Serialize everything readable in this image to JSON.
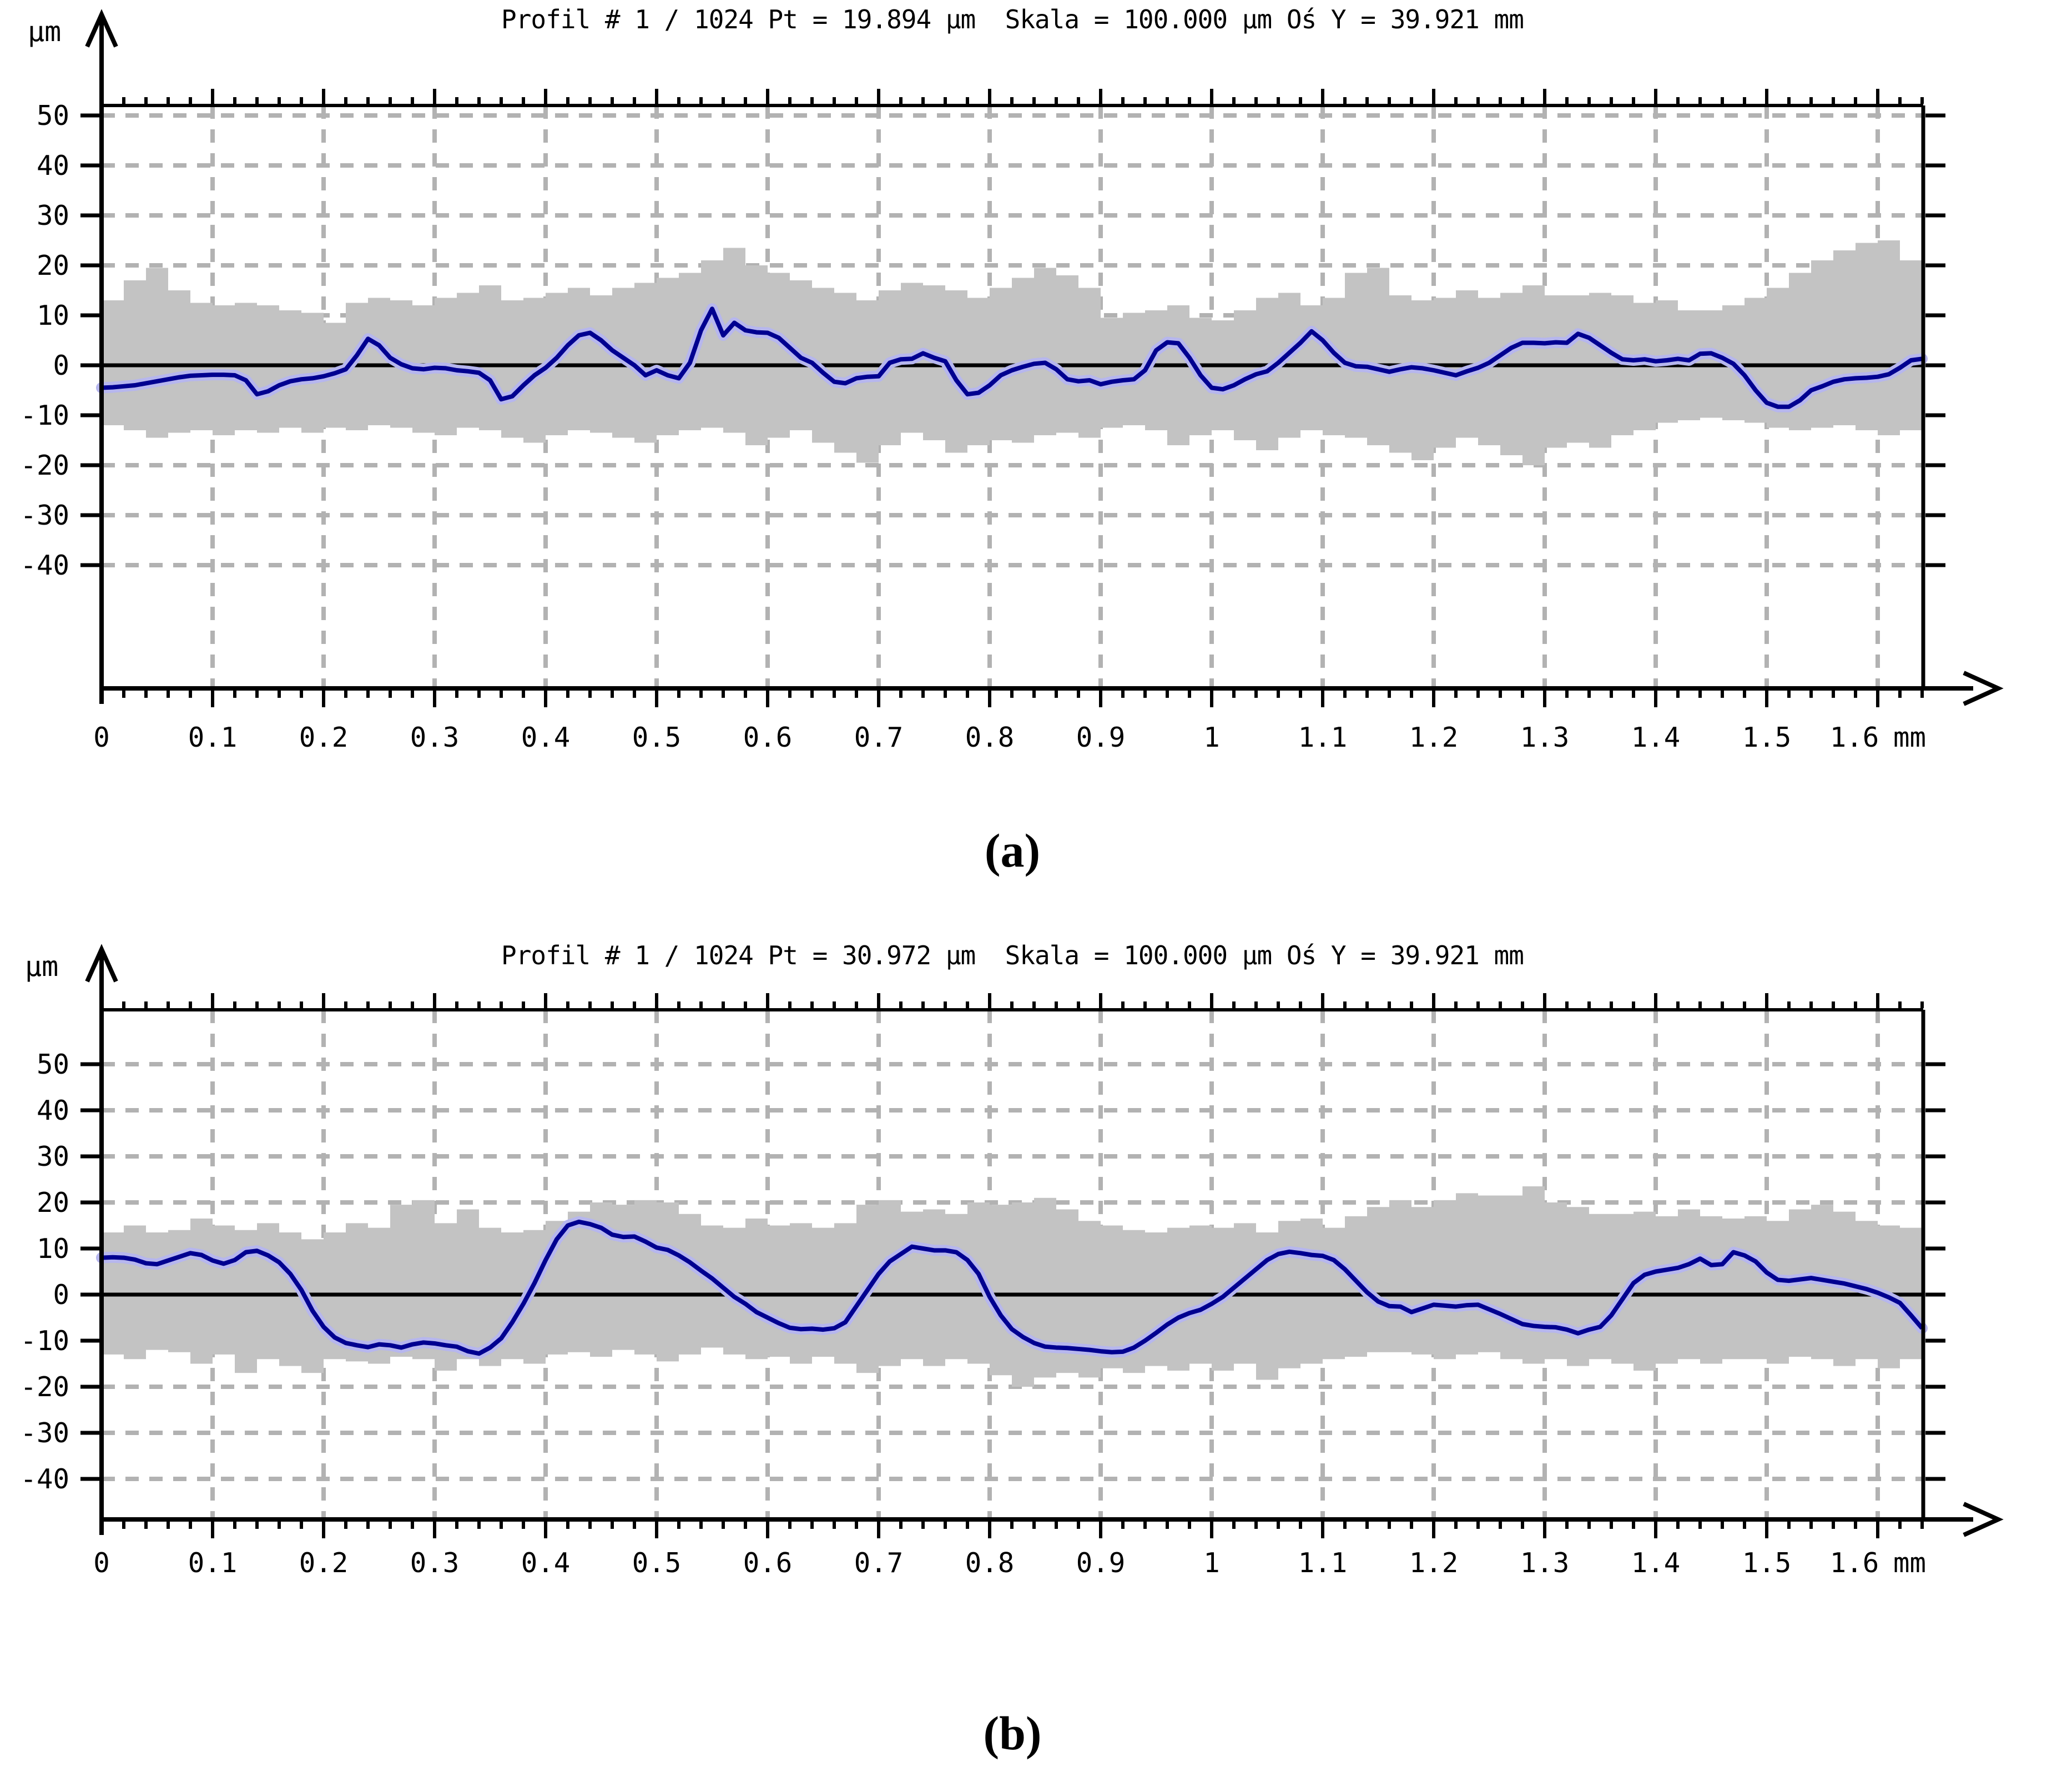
{
  "page": {
    "background": "#ffffff"
  },
  "charts": [
    {
      "id": "a",
      "title": "Profil # 1 / 1024 Pt = 19.894 µm  Skala = 100.000 µm Oś Y = 39.921 mm",
      "y_unit_label": "µm",
      "x_unit_label": "mm",
      "caption": "(a)",
      "colors": {
        "mean": "#000090",
        "halo": "#b6b6ee",
        "band": "#c3c3c3",
        "grid": "#b2b2b2",
        "axis": "#000000"
      },
      "axes": {
        "y_ticks": [
          50,
          40,
          30,
          20,
          10,
          0,
          -10,
          -20,
          -30,
          -40
        ],
        "x_ticks": [
          0,
          0.1,
          0.2,
          0.3,
          0.4,
          0.5,
          0.6,
          0.7,
          0.8,
          0.9,
          1,
          1.1,
          1.2,
          1.3,
          1.4,
          1.5,
          1.6
        ],
        "x_tick_labels": [
          "0",
          "0.1",
          "0.2",
          "0.3",
          "0.4",
          "0.5",
          "0.6",
          "0.7",
          "0.8",
          "0.9",
          "1",
          "1.1",
          "1.2",
          "1.3",
          "1.4",
          "1.5",
          "1.6"
        ],
        "x_minor_step_mm": 0.02,
        "grid": true
      },
      "chart_data": {
        "type": "area+line",
        "title": "Profil # 1 / 1024 Pt = 19.894 µm  Skala = 100.000 µm Oś Y = 39.921 mm",
        "xlabel": "mm",
        "ylabel": "µm",
        "x_range": [
          0,
          1.64
        ],
        "ylim": [
          -40,
          50
        ],
        "series": [
          {
            "name": "envelope-upper",
            "x_step": 0.02,
            "values": [
              13,
              17,
              19.5,
              15,
              12.5,
              12,
              12.5,
              12,
              11,
              10.5,
              8.5,
              12.5,
              13.5,
              13,
              12,
              13.5,
              14.5,
              16,
              13,
              13.5,
              14.5,
              15.5,
              14,
              15.5,
              16.5,
              17.5,
              18.5,
              21,
              23.5,
              20,
              18.5,
              17,
              15.5,
              14.5,
              13,
              15,
              16.5,
              16,
              15,
              13.5,
              15.5,
              17.5,
              19.5,
              18,
              15.5,
              9.5,
              10.5,
              11,
              12,
              9.5,
              9,
              11,
              13.5,
              14.5,
              12,
              13.5,
              18.5,
              19.5,
              14,
              13,
              13.5,
              15,
              13.5,
              14.5,
              16,
              14,
              14,
              14.5,
              14,
              12.5,
              13,
              11,
              11,
              12,
              13.5,
              15.5,
              18.5,
              21,
              23,
              24.5,
              25,
              21,
              15
            ]
          },
          {
            "name": "envelope-lower",
            "x_step": 0.02,
            "values": [
              -12,
              -13,
              -14.5,
              -13.5,
              -13,
              -14,
              -13,
              -13.5,
              -12.5,
              -13.5,
              -12.5,
              -13,
              -12,
              -12.5,
              -13.5,
              -14,
              -12.5,
              -13,
              -14.5,
              -15.5,
              -14,
              -13,
              -13.5,
              -14.5,
              -15.5,
              -14,
              -13,
              -12.5,
              -13.5,
              -16,
              -14.5,
              -13,
              -15.5,
              -17.5,
              -19.5,
              -16,
              -13.5,
              -15,
              -17.5,
              -16,
              -15,
              -15.5,
              -14,
              -13.5,
              -14.5,
              -12.5,
              -12,
              -13,
              -16,
              -14,
              -13,
              -15,
              -17,
              -14.5,
              -13,
              -14,
              -14.5,
              -16,
              -17.5,
              -19,
              -16.5,
              -14.5,
              -16,
              -18,
              -20,
              -16.5,
              -15.5,
              -16.5,
              -14,
              -13,
              -11.5,
              -11,
              -10.5,
              -11,
              -11.5,
              -12.5,
              -13,
              -12.5,
              -12,
              -13,
              -14,
              -13,
              -12
            ]
          },
          {
            "name": "mean-profile",
            "x_step": 0.01,
            "values": [
              -4.5,
              -4.4,
              -4.2,
              -4,
              -3.6,
              -3.2,
              -2.8,
              -2.4,
              -2.1,
              -2,
              -1.9,
              -1.9,
              -2,
              -3,
              -5.8,
              -5.2,
              -4,
              -3.2,
              -2.8,
              -2.6,
              -2.2,
              -1.6,
              -0.8,
              2,
              5.3,
              4,
              1.5,
              0.2,
              -0.6,
              -0.8,
              -0.5,
              -0.6,
              -1,
              -1.2,
              -1.5,
              -3,
              -6.8,
              -6.2,
              -4,
              -2,
              -0.5,
              1.5,
              4,
              6,
              6.5,
              5,
              3,
              1.5,
              0,
              -2,
              -1,
              -2,
              -2.6,
              0.5,
              7,
              11.3,
              6,
              8.5,
              7,
              6.6,
              6.5,
              5.5,
              3.5,
              1.5,
              0.5,
              -1.5,
              -3.3,
              -3.6,
              -2.6,
              -2.3,
              -2.2,
              0.5,
              1.2,
              1.3,
              2.4,
              1.5,
              0.8,
              -3,
              -5.8,
              -5.5,
              -4,
              -2,
              -1,
              -0.3,
              0.3,
              0.5,
              -0.8,
              -2.8,
              -3.2,
              -3,
              -3.8,
              -3.3,
              -3,
              -2.8,
              -1,
              3,
              4.6,
              4.4,
              1.5,
              -2,
              -4.5,
              -4.8,
              -4,
              -2.8,
              -1.8,
              -1.2,
              0.5,
              2.5,
              4.5,
              6.8,
              5,
              2.5,
              0.5,
              -0.2,
              -0.3,
              -0.8,
              -1.3,
              -0.8,
              -0.4,
              -0.6,
              -1,
              -1.5,
              -2,
              -1.2,
              -0.5,
              0.5,
              2,
              3.5,
              4.5,
              4.5,
              4.4,
              4.6,
              4.5,
              6.3,
              5.5,
              4,
              2.5,
              1.2,
              1,
              1.2,
              0.8,
              1,
              1.3,
              1,
              2.3,
              2.4,
              1.5,
              0.3,
              -2,
              -5,
              -7.5,
              -8.3,
              -8.3,
              -7,
              -5,
              -4.2,
              -3.3,
              -2.8,
              -2.6,
              -2.5,
              -2.3,
              -1.8,
              -0.5,
              1,
              1.3
            ]
          }
        ]
      }
    },
    {
      "id": "b",
      "title": "Profil # 1 / 1024 Pt = 30.972 µm  Skala = 100.000 µm Oś Y = 39.921 mm",
      "y_unit_label": "µm",
      "x_unit_label": "mm",
      "caption": "(b)",
      "colors": {
        "mean": "#000090",
        "halo": "#b6b6ee",
        "band": "#c3c3c3",
        "grid": "#b2b2b2",
        "axis": "#000000"
      },
      "axes": {
        "y_ticks": [
          50,
          40,
          30,
          20,
          10,
          0,
          -10,
          -20,
          -30,
          -40
        ],
        "x_ticks": [
          0,
          0.1,
          0.2,
          0.3,
          0.4,
          0.5,
          0.6,
          0.7,
          0.8,
          0.9,
          1,
          1.1,
          1.2,
          1.3,
          1.4,
          1.5,
          1.6
        ],
        "x_tick_labels": [
          "0",
          "0.1",
          "0.2",
          "0.3",
          "0.4",
          "0.5",
          "0.6",
          "0.7",
          "0.8",
          "0.9",
          "1",
          "1.1",
          "1.2",
          "1.3",
          "1.4",
          "1.5",
          "1.6"
        ],
        "x_minor_step_mm": 0.02,
        "grid": true
      },
      "chart_data": {
        "type": "area+line",
        "title": "Profil # 1 / 1024 Pt = 30.972 µm  Skala = 100.000 µm Oś Y = 39.921 mm",
        "xlabel": "mm",
        "ylabel": "µm",
        "x_range": [
          0,
          1.64
        ],
        "ylim": [
          -40,
          50
        ],
        "series": [
          {
            "name": "envelope-upper",
            "x_step": 0.02,
            "values": [
              13.5,
              15,
              13.5,
              14,
              16.5,
              15,
              14,
              15.5,
              13.5,
              12,
              13.5,
              15.5,
              14.5,
              19.5,
              20.5,
              15.5,
              18.5,
              14.5,
              13.5,
              14,
              16,
              18,
              20,
              19.5,
              20.5,
              20,
              17.5,
              15,
              14.5,
              16.5,
              15,
              15.5,
              14.5,
              15.5,
              19.5,
              20.5,
              18,
              18.5,
              17.5,
              20,
              19.5,
              20,
              21,
              18.5,
              16,
              15,
              14,
              13.5,
              14.5,
              15,
              14.5,
              15.5,
              13.5,
              16,
              16.5,
              14.5,
              17,
              19,
              20.5,
              19,
              20.5,
              22,
              21.5,
              21.5,
              23.5,
              20,
              19,
              17.5,
              17.5,
              18,
              17,
              18.5,
              17,
              16.5,
              17,
              16,
              18.5,
              19.5,
              18,
              16,
              15,
              14.5,
              14
            ]
          },
          {
            "name": "envelope-lower",
            "x_step": 0.02,
            "values": [
              -13,
              -14,
              -12,
              -12.5,
              -15,
              -13,
              -17,
              -14,
              -15.5,
              -17,
              -14,
              -14.5,
              -15,
              -13.5,
              -14,
              -16.5,
              -14,
              -15.5,
              -14,
              -15,
              -13,
              -12.5,
              -13.5,
              -12,
              -13,
              -14.5,
              -13,
              -11.5,
              -13,
              -14,
              -13.5,
              -15,
              -13.5,
              -15,
              -17,
              -15.5,
              -14,
              -15.5,
              -14,
              -15,
              -17.5,
              -20,
              -18,
              -17,
              -18,
              -16,
              -17,
              -15.5,
              -16.5,
              -15,
              -16.5,
              -15,
              -18.5,
              -16,
              -15,
              -14,
              -13.5,
              -12.5,
              -12.5,
              -13,
              -14,
              -13,
              -12.5,
              -14,
              -15,
              -14,
              -15.5,
              -14,
              -15,
              -16.5,
              -15,
              -14,
              -15,
              -14,
              -14,
              -15,
              -13.5,
              -14,
              -15.5,
              -14,
              -16,
              -14,
              -13
            ]
          },
          {
            "name": "mean-profile",
            "x_step": 0.01,
            "values": [
              8,
              8.1,
              8,
              7.6,
              6.8,
              6.6,
              7.4,
              8.2,
              9,
              8.6,
              7.4,
              6.7,
              7.5,
              9.2,
              9.5,
              8.5,
              7,
              4.5,
              1,
              -3.5,
              -7,
              -9.3,
              -10.5,
              -11,
              -11.4,
              -10.8,
              -11,
              -11.5,
              -10.8,
              -10.4,
              -10.6,
              -11,
              -11.3,
              -12.3,
              -12.8,
              -11.5,
              -9.5,
              -6,
              -2,
              2.5,
              7.5,
              12,
              15,
              15.8,
              15.3,
              14.5,
              13,
              12.5,
              12.6,
              11.5,
              10.2,
              9.7,
              8.5,
              7,
              5.2,
              3.5,
              1.5,
              -0.5,
              -2,
              -3.8,
              -5,
              -6.2,
              -7.2,
              -7.5,
              -7.4,
              -7.6,
              -7.3,
              -6,
              -2.5,
              1,
              4.5,
              7.2,
              8.8,
              10.4,
              10,
              9.6,
              9.6,
              9.2,
              7.5,
              4.5,
              -0.5,
              -4.5,
              -7.5,
              -9.2,
              -10.5,
              -11.3,
              -11.5,
              -11.6,
              -11.8,
              -12,
              -12.3,
              -12.5,
              -12.4,
              -11.5,
              -10,
              -8.3,
              -6.5,
              -5,
              -4,
              -3.3,
              -2,
              -0.5,
              1.5,
              3.5,
              5.5,
              7.5,
              8.8,
              9.3,
              9,
              8.6,
              8.4,
              7.5,
              5.5,
              3,
              0.5,
              -1.5,
              -2.5,
              -2.6,
              -3.8,
              -3,
              -2.2,
              -2.4,
              -2.6,
              -2.3,
              -2.2,
              -3.2,
              -4.2,
              -5.3,
              -6.4,
              -6.8,
              -7,
              -7.1,
              -7.6,
              -8.4,
              -7.6,
              -7,
              -4.5,
              -1,
              2.5,
              4.3,
              5,
              5.4,
              5.8,
              6.6,
              7.8,
              6.4,
              6.6,
              9.2,
              8.5,
              7.2,
              4.8,
              3.2,
              3,
              3.3,
              3.6,
              3.2,
              2.8,
              2.4,
              1.8,
              1.2,
              0.4,
              -0.6,
              -1.8,
              -4.5,
              -7.3
            ]
          }
        ]
      }
    }
  ]
}
